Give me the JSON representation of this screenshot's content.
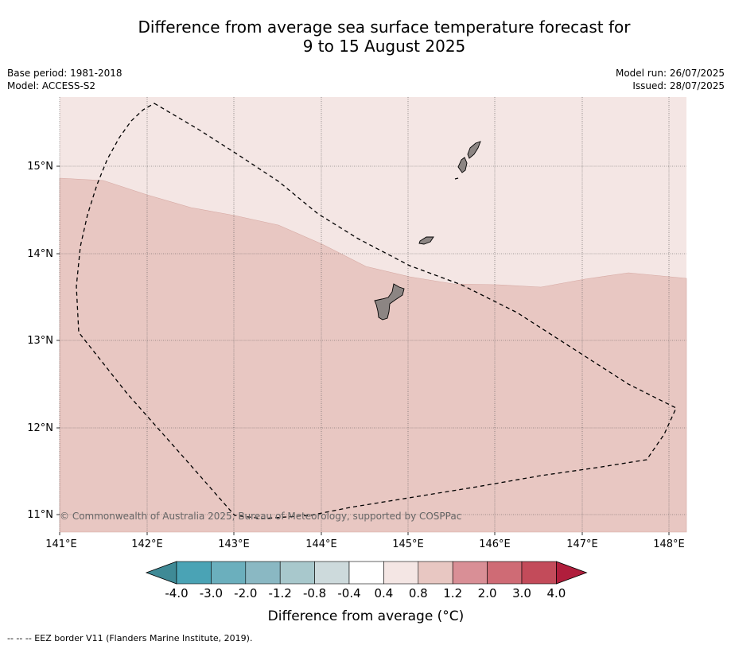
{
  "title_line1": "Difference from average sea surface temperature forecast for",
  "title_line2": "9 to 15 August 2025",
  "base_period": "Base period: 1981-2018",
  "model": "Model: ACCESS-S2",
  "model_run": "Model run: 26/07/2025",
  "issued": "Issued: 28/07/2025",
  "copyright": "© Commonwealth of Australia 2025, Bureau of Meteorology, supported by COSPPac",
  "lon_ticks": [
    "141°E",
    "142°E",
    "143°E",
    "144°E",
    "145°E",
    "146°E",
    "147°E",
    "148°E"
  ],
  "lat_ticks": [
    "15°N",
    "14°N",
    "13°N",
    "12°N",
    "11°N"
  ],
  "colorbar": {
    "title": "Difference from average (°C)",
    "labels": [
      "-4.0",
      "-3.0",
      "-2.0",
      "-1.2",
      "-0.8",
      "-0.4",
      "0.4",
      "0.8",
      "1.2",
      "2.0",
      "3.0",
      "4.0"
    ],
    "colors": [
      "#4aa3b5",
      "#6bafbd",
      "#8ab8c3",
      "#a8c8cc",
      "#cddadc",
      "#ffffff",
      "#f4e6e4",
      "#e8c7c2",
      "#d98f96",
      "#cf6b75",
      "#c34b5a"
    ],
    "under_color": "#3f8a96",
    "over_color": "#b01e3c"
  },
  "map": {
    "lower_region_color": "#e8c7c2",
    "upper_region_color": "#f4e6e4",
    "land_color": "#8c8583"
  },
  "footnote": "--  --  -- EEZ border V11 (Flanders Marine Institute, 2019)."
}
